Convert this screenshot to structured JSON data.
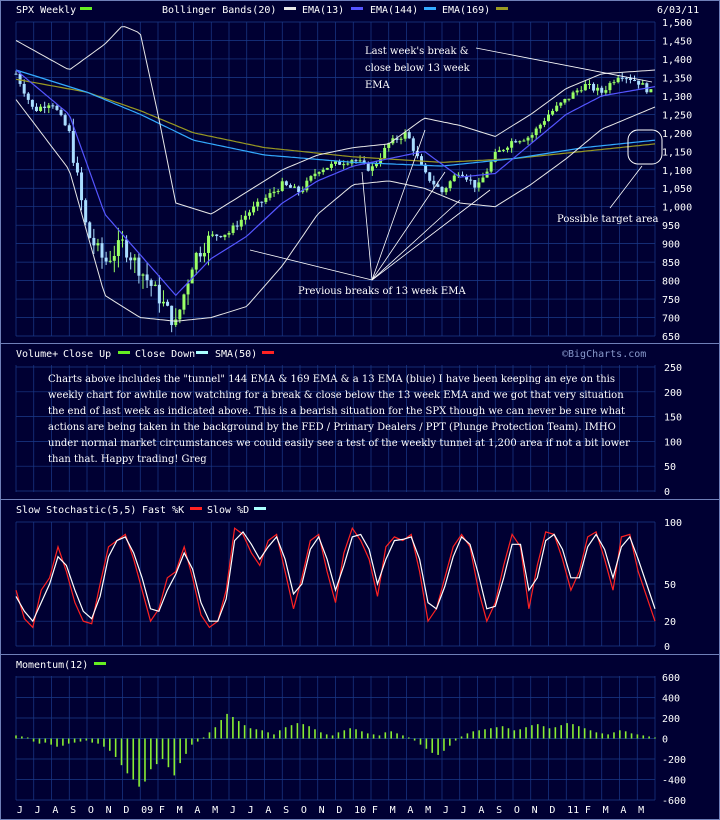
{
  "header": {
    "ticker": "SPX Weekly",
    "ind1": "Bollinger Bands(20)",
    "ind2": "EMA(13)",
    "ind3": "EMA(144)",
    "ind4": "EMA(169)",
    "date": "6/03/11"
  },
  "colors": {
    "background": "#000033",
    "grid": "#1a3a8a",
    "price": "#ffffff",
    "up": "#99ff66",
    "down": "#aaddff",
    "bollinger": "#e8e8e8",
    "ema13": "#5555ff",
    "ema144": "#33aaff",
    "ema169": "#999922",
    "stoch_fast": "#ff2222",
    "stoch_slow": "#ffffff",
    "momentum": "#88ee33",
    "swatch_green": "#66ee22",
    "swatch_cyan": "#aaffff",
    "swatch_red": "#ff2222"
  },
  "annotations": {
    "last_break": [
      "Last week's break &",
      "close below 13 week",
      "EMA"
    ],
    "previous_breaks": "Previous breaks of 13 week EMA",
    "target": "Possible target area"
  },
  "volume_panel": {
    "title1": "Volume+",
    "title2": "Close Up",
    "title3": "Close Down",
    "title4": "SMA(50)",
    "watermark": "©BigCharts.com",
    "ticks": [
      "250",
      "200",
      "150",
      "100",
      "50",
      "0"
    ],
    "comment": "Charts above includes the \"tunnel\" 144 EMA & 169 EMA & a 13 EMA (blue) I have been keeping an eye on this weekly chart for awhile now watching for a break & close below the 13 week EMA and we got that very situation the end of last week as indicated above. This is a bearish situation for the SPX though we can never be sure what actions are being taken in the background by the FED / Primary Dealers / PPT (Plunge Protection Team). IMHO under normal market circumstances we could easily see a test of the weekly tunnel at 1,200 area if not a bit lower than that. Happy trading! Greg"
  },
  "stoch_panel": {
    "title1": "Slow Stochastic(5,5)",
    "title2": "Fast %K",
    "title3": "Slow %D",
    "ticks": [
      "100",
      "50",
      "20",
      "0"
    ]
  },
  "momentum_panel": {
    "title": "Momentum(12)",
    "ticks": [
      "600",
      "400",
      "200",
      "0",
      "-200",
      "-400",
      "-600"
    ]
  },
  "x_axis_labels": [
    "J",
    "J",
    "A",
    "S",
    "O",
    "N",
    "D",
    "09",
    "F",
    "M",
    "A",
    "M",
    "J",
    "J",
    "A",
    "S",
    "O",
    "N",
    "D",
    "10",
    "F",
    "M",
    "A",
    "M",
    "J",
    "J",
    "A",
    "S",
    "O",
    "N",
    "D",
    "11",
    "F",
    "M",
    "A",
    "M"
  ],
  "chart_data": [
    {
      "type": "candlestick",
      "title": "SPX Weekly",
      "ylim": [
        650,
        1500
      ],
      "y_ticks": [
        "1,500",
        "1,450",
        "1,400",
        "1,350",
        "1,300",
        "1,250",
        "1,200",
        "1,150",
        "1,100",
        "1,050",
        "1,000",
        "950",
        "900",
        "850",
        "800",
        "750",
        "700",
        "650"
      ],
      "x_range": [
        "2008-06",
        "2011-06"
      ],
      "close_anchors": [
        [
          "2008-06",
          1360
        ],
        [
          "2008-07",
          1260
        ],
        [
          "2008-08",
          1285
        ],
        [
          "2008-09",
          1200
        ],
        [
          "2008-10",
          930
        ],
        [
          "2008-11",
          850
        ],
        [
          "2008-12",
          900
        ],
        [
          "2009-01",
          830
        ],
        [
          "2009-02",
          760
        ],
        [
          "2009-03",
          680
        ],
        [
          "2009-04",
          860
        ],
        [
          "2009-05",
          920
        ],
        [
          "2009-06",
          930
        ],
        [
          "2009-07",
          980
        ],
        [
          "2009-08",
          1020
        ],
        [
          "2009-09",
          1060
        ],
        [
          "2009-10",
          1040
        ],
        [
          "2009-11",
          1100
        ],
        [
          "2009-12",
          1115
        ],
        [
          "2010-01",
          1130
        ],
        [
          "2010-02",
          1100
        ],
        [
          "2010-03",
          1170
        ],
        [
          "2010-04",
          1200
        ],
        [
          "2010-05",
          1090
        ],
        [
          "2010-06",
          1040
        ],
        [
          "2010-07",
          1100
        ],
        [
          "2010-08",
          1050
        ],
        [
          "2010-09",
          1140
        ],
        [
          "2010-10",
          1180
        ],
        [
          "2010-11",
          1190
        ],
        [
          "2010-12",
          1250
        ],
        [
          "2011-01",
          1290
        ],
        [
          "2011-02",
          1330
        ],
        [
          "2011-03",
          1310
        ],
        [
          "2011-04",
          1360
        ],
        [
          "2011-05",
          1340
        ],
        [
          "2011-06",
          1300
        ]
      ],
      "bollinger_upper_anchors": [
        [
          "2008-06",
          1450
        ],
        [
          "2008-09",
          1370
        ],
        [
          "2008-11",
          1440
        ],
        [
          "2008-12",
          1490
        ],
        [
          "2009-01",
          1470
        ],
        [
          "2009-02",
          1250
        ],
        [
          "2009-03",
          1010
        ],
        [
          "2009-05",
          980
        ],
        [
          "2009-07",
          1040
        ],
        [
          "2009-09",
          1100
        ],
        [
          "2009-11",
          1140
        ],
        [
          "2010-01",
          1160
        ],
        [
          "2010-03",
          1170
        ],
        [
          "2010-05",
          1240
        ],
        [
          "2010-07",
          1220
        ],
        [
          "2010-09",
          1190
        ],
        [
          "2010-11",
          1250
        ],
        [
          "2011-01",
          1320
        ],
        [
          "2011-03",
          1360
        ],
        [
          "2011-06",
          1370
        ]
      ],
      "bollinger_lower_anchors": [
        [
          "2008-06",
          1290
        ],
        [
          "2008-09",
          1100
        ],
        [
          "2008-11",
          760
        ],
        [
          "2009-01",
          700
        ],
        [
          "2009-03",
          690
        ],
        [
          "2009-05",
          700
        ],
        [
          "2009-07",
          730
        ],
        [
          "2009-09",
          840
        ],
        [
          "2009-11",
          980
        ],
        [
          "2010-01",
          1060
        ],
        [
          "2010-03",
          1070
        ],
        [
          "2010-05",
          1050
        ],
        [
          "2010-07",
          1010
        ],
        [
          "2010-09",
          1000
        ],
        [
          "2010-11",
          1060
        ],
        [
          "2011-01",
          1130
        ],
        [
          "2011-03",
          1210
        ],
        [
          "2011-06",
          1270
        ]
      ],
      "ema13_anchors": [
        [
          "2008-06",
          1370
        ],
        [
          "2008-09",
          1250
        ],
        [
          "2008-11",
          980
        ],
        [
          "2009-01",
          870
        ],
        [
          "2009-03",
          760
        ],
        [
          "2009-05",
          860
        ],
        [
          "2009-07",
          920
        ],
        [
          "2009-09",
          1010
        ],
        [
          "2009-11",
          1070
        ],
        [
          "2010-01",
          1110
        ],
        [
          "2010-03",
          1130
        ],
        [
          "2010-05",
          1150
        ],
        [
          "2010-07",
          1080
        ],
        [
          "2010-09",
          1090
        ],
        [
          "2010-11",
          1170
        ],
        [
          "2011-01",
          1250
        ],
        [
          "2011-03",
          1300
        ],
        [
          "2011-06",
          1325
        ]
      ],
      "ema144_anchors": [
        [
          "2008-06",
          1370
        ],
        [
          "2008-10",
          1310
        ],
        [
          "2009-01",
          1250
        ],
        [
          "2009-04",
          1180
        ],
        [
          "2009-08",
          1140
        ],
        [
          "2010-01",
          1120
        ],
        [
          "2010-06",
          1110
        ],
        [
          "2010-10",
          1130
        ],
        [
          "2011-02",
          1160
        ],
        [
          "2011-06",
          1180
        ]
      ],
      "ema169_anchors": [
        [
          "2008-06",
          1345
        ],
        [
          "2008-10",
          1310
        ],
        [
          "2009-01",
          1260
        ],
        [
          "2009-04",
          1200
        ],
        [
          "2009-08",
          1160
        ],
        [
          "2010-01",
          1135
        ],
        [
          "2010-06",
          1120
        ],
        [
          "2010-10",
          1130
        ],
        [
          "2011-02",
          1150
        ],
        [
          "2011-06",
          1170
        ]
      ]
    },
    {
      "type": "line",
      "title": "Slow Stochastic(5,5)",
      "ylim": [
        0,
        100
      ],
      "series": [
        {
          "name": "Fast %K",
          "values": [
            45,
            22,
            15,
            45,
            55,
            80,
            60,
            35,
            20,
            18,
            50,
            80,
            85,
            90,
            70,
            45,
            20,
            30,
            55,
            60,
            80,
            55,
            25,
            15,
            20,
            45,
            95,
            90,
            75,
            65,
            85,
            90,
            60,
            30,
            55,
            85,
            90,
            60,
            35,
            75,
            95,
            85,
            70,
            40,
            80,
            88,
            85,
            90,
            60,
            20,
            30,
            55,
            80,
            90,
            80,
            45,
            20,
            35,
            65,
            90,
            80,
            30,
            65,
            92,
            90,
            70,
            45,
            60,
            88,
            92,
            70,
            45,
            88,
            90,
            60,
            40,
            20
          ]
        },
        {
          "name": "Slow %D",
          "values": [
            40,
            28,
            20,
            35,
            50,
            72,
            65,
            45,
            28,
            22,
            40,
            72,
            85,
            88,
            75,
            55,
            30,
            28,
            45,
            58,
            75,
            62,
            35,
            20,
            20,
            38,
            85,
            92,
            82,
            70,
            80,
            88,
            70,
            42,
            50,
            78,
            88,
            70,
            45,
            65,
            88,
            90,
            78,
            50,
            70,
            85,
            86,
            88,
            70,
            35,
            30,
            48,
            72,
            88,
            82,
            58,
            30,
            32,
            55,
            82,
            82,
            45,
            55,
            85,
            90,
            78,
            55,
            55,
            80,
            90,
            78,
            55,
            80,
            88,
            70,
            50,
            30
          ]
        }
      ]
    },
    {
      "type": "bar",
      "title": "Momentum(12)",
      "ylim": [
        -600,
        600
      ],
      "values": [
        30,
        20,
        10,
        -30,
        -50,
        -40,
        -60,
        -80,
        -70,
        -50,
        -40,
        -30,
        -20,
        -40,
        -50,
        -80,
        -120,
        -180,
        -260,
        -340,
        -400,
        -470,
        -420,
        -300,
        -250,
        -200,
        -280,
        -360,
        -240,
        -150,
        -60,
        -30,
        10,
        60,
        110,
        180,
        240,
        210,
        170,
        130,
        100,
        90,
        80,
        60,
        40,
        80,
        110,
        130,
        150,
        140,
        120,
        90,
        60,
        40,
        30,
        60,
        80,
        100,
        90,
        70,
        50,
        40,
        30,
        60,
        70,
        50,
        30,
        10,
        -20,
        -60,
        -100,
        -140,
        -160,
        -120,
        -70,
        -20,
        20,
        50,
        70,
        80,
        90,
        100,
        110,
        120,
        100,
        80,
        90,
        110,
        130,
        140,
        120,
        100,
        110,
        130,
        150,
        140,
        120,
        100,
        80,
        60,
        50,
        40,
        60,
        80,
        70,
        50,
        40,
        30,
        20,
        10
      ]
    }
  ]
}
